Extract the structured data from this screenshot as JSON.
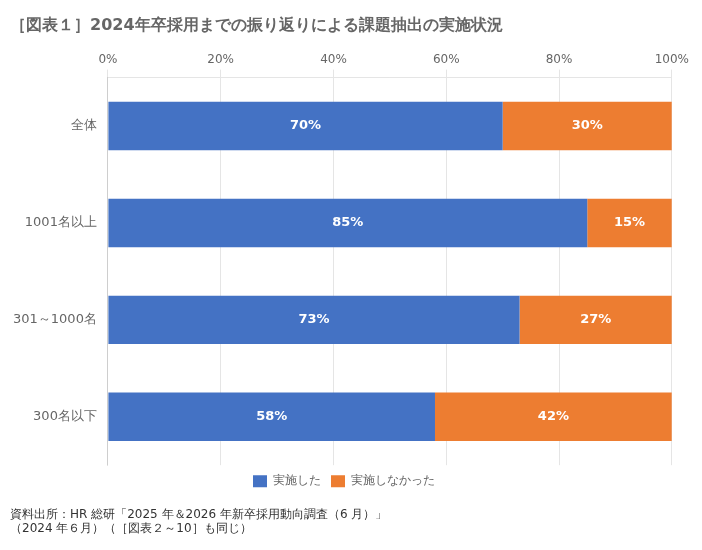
{
  "chart_data": {
    "type": "bar",
    "orientation": "horizontal",
    "stacked": true,
    "title": "［図表１］2024年卒採用までの振り返りによる課題抽出の実施状況",
    "categories": [
      "全体",
      "1001名以上",
      "301～1000名",
      "300名以下"
    ],
    "series": [
      {
        "name": "実施した",
        "color": "#4472C4",
        "values": [
          70,
          85,
          73,
          58
        ],
        "value_labels": [
          "70%",
          "85%",
          "73%",
          "58%"
        ]
      },
      {
        "name": "実施しなかった",
        "color": "#ED7D31",
        "values": [
          30,
          15,
          27,
          42
        ],
        "value_labels": [
          "30%",
          "15%",
          "27%",
          "42%"
        ]
      }
    ],
    "xlim": [
      0,
      100
    ],
    "xticks": [
      {
        "value": 0,
        "label": "0%"
      },
      {
        "value": 20,
        "label": "20%"
      },
      {
        "value": 40,
        "label": "40%"
      },
      {
        "value": 60,
        "label": "60%"
      },
      {
        "value": 80,
        "label": "80%"
      },
      {
        "value": 100,
        "label": "100%"
      }
    ],
    "grid": true,
    "legend": "bottom",
    "data_labels": true,
    "annotations": [
      "資料出所：HR 総研「2025 年＆2026 年新卒採用動向調査（6 月）」",
      "（2024 年６月）（［図表２～10］も同じ）"
    ]
  }
}
